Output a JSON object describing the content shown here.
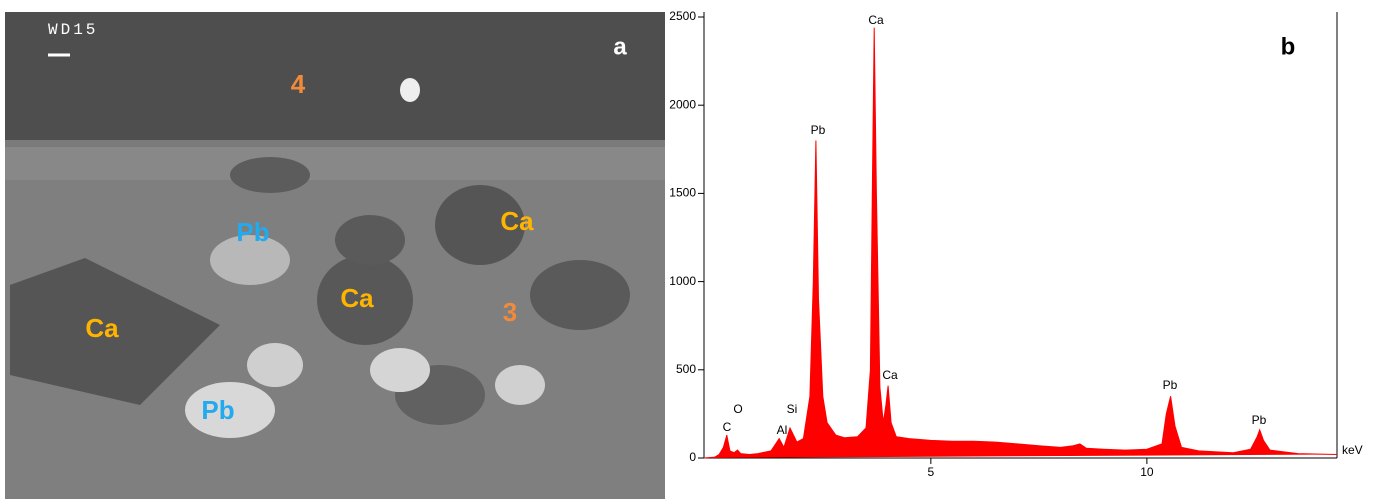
{
  "image": {
    "panel": "a",
    "scale_label": "WD15",
    "labels": [
      {
        "text": "4",
        "color": "#f08a3c"
      },
      {
        "text": "Pb",
        "color": "#22aaee"
      },
      {
        "text": "Ca",
        "color": "#ffb400"
      },
      {
        "text": "Ca",
        "color": "#ffb400"
      },
      {
        "text": "3",
        "color": "#f08a3c"
      },
      {
        "text": "Ca",
        "color": "#ffb400"
      },
      {
        "text": "Pb",
        "color": "#22aaee"
      }
    ]
  },
  "chart_data": {
    "type": "area",
    "panel": "b",
    "x_label": "keV",
    "color": "#ff0000",
    "x": [
      -0.25,
      0.0,
      0.1,
      0.2,
      0.277,
      0.35,
      0.45,
      0.525,
      0.6,
      0.8,
      1.0,
      1.3,
      1.49,
      1.6,
      1.74,
      1.9,
      2.05,
      2.2,
      2.28,
      2.34,
      2.4,
      2.5,
      2.6,
      2.8,
      3.0,
      3.3,
      3.5,
      3.6,
      3.65,
      3.69,
      3.74,
      3.82,
      3.9,
      3.96,
      4.01,
      4.08,
      4.2,
      4.5,
      5.0,
      5.5,
      6.0,
      6.5,
      7.0,
      7.5,
      8.0,
      8.3,
      8.45,
      8.6,
      9.0,
      9.5,
      10.0,
      10.35,
      10.45,
      10.55,
      10.65,
      10.8,
      11.2,
      12.0,
      12.4,
      12.55,
      12.61,
      12.7,
      12.85,
      13.5,
      14.4
    ],
    "values": [
      0,
      5,
      20,
      60,
      130,
      40,
      30,
      45,
      25,
      20,
      25,
      40,
      110,
      60,
      170,
      90,
      110,
      350,
      1000,
      1800,
      900,
      350,
      200,
      130,
      115,
      120,
      170,
      500,
      1600,
      2440,
      1500,
      400,
      200,
      300,
      410,
      200,
      120,
      110,
      100,
      95,
      95,
      90,
      80,
      70,
      60,
      70,
      80,
      55,
      50,
      45,
      50,
      80,
      250,
      350,
      180,
      60,
      40,
      30,
      50,
      120,
      160,
      100,
      45,
      25,
      20
    ],
    "xlim": [
      -0.25,
      14.4
    ],
    "xticks": [
      5,
      10
    ],
    "ylim": [
      0,
      2500
    ],
    "yticks": [
      0,
      500,
      1000,
      1500,
      2000,
      2500
    ],
    "annotations": [
      "C",
      "O",
      "Al",
      "Si",
      "Pb",
      "Ca",
      "Ca",
      "Pb",
      "Pb"
    ]
  }
}
